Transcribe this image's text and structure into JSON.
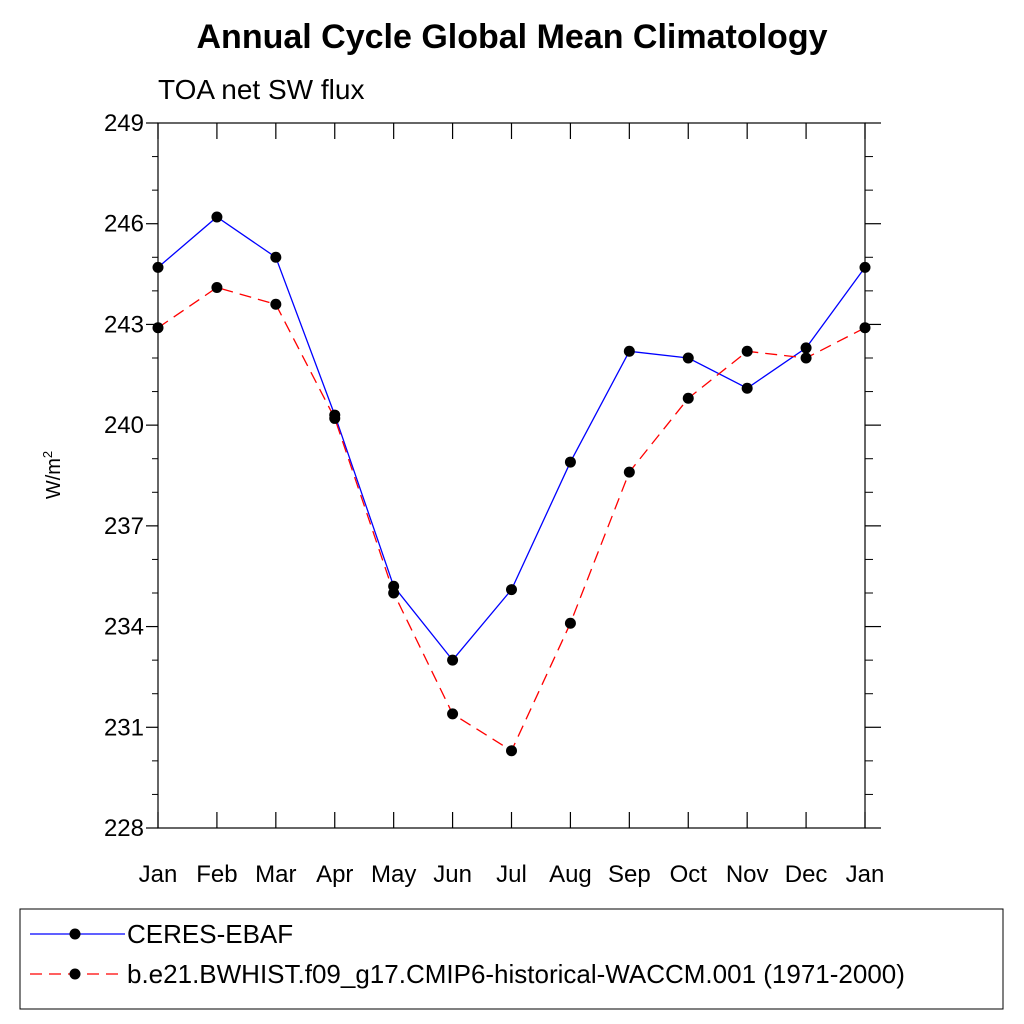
{
  "chart_data": {
    "type": "line",
    "title": "Annual Cycle Global Mean Climatology",
    "subtitle": "TOA net SW flux",
    "ylabel": "W/m",
    "ylabel_superscript": "2",
    "xlabel": "",
    "categories": [
      "Jan",
      "Feb",
      "Mar",
      "Apr",
      "May",
      "Jun",
      "Jul",
      "Aug",
      "Sep",
      "Oct",
      "Nov",
      "Dec",
      "Jan"
    ],
    "yticks": [
      "228",
      "231",
      "234",
      "237",
      "240",
      "243",
      "246",
      "249"
    ],
    "ylim": [
      228,
      249
    ],
    "series": [
      {
        "name": "CERES-EBAF",
        "color": "#0000ff",
        "dashed": false,
        "values": [
          244.7,
          246.2,
          245.0,
          240.3,
          235.2,
          233.0,
          235.1,
          238.9,
          242.2,
          242.0,
          241.1,
          242.3,
          244.7
        ]
      },
      {
        "name": "b.e21.BWHIST.f09_g17.CMIP6-historical-WACCM.001 (1971-2000)",
        "color": "#ff0000",
        "dashed": true,
        "values": [
          242.9,
          244.1,
          243.6,
          240.2,
          235.0,
          231.4,
          230.3,
          234.1,
          238.6,
          240.8,
          242.2,
          242.0,
          242.9
        ]
      }
    ],
    "legend": "bottom",
    "grid": false
  }
}
